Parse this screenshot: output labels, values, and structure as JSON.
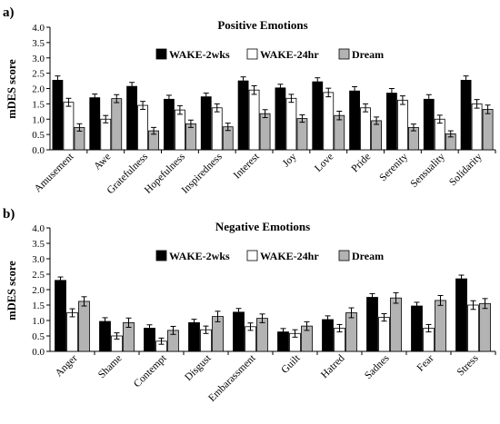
{
  "chart_data": [
    {
      "type": "bar",
      "panel_label": "a)",
      "title": "Positive Emotions",
      "xlabel": "",
      "ylabel": "mDES score",
      "ylim": [
        0,
        4
      ],
      "yticks": [
        "0.0",
        "0.5",
        "1.0",
        "1.5",
        "2.0",
        "2.5",
        "3.0",
        "3.5",
        "4.0"
      ],
      "legend_position": "top",
      "categories": [
        "Amusement",
        "Awe",
        "Gratefulness",
        "Hopefulness",
        "Inspiredness",
        "Interest",
        "Joy",
        "Love",
        "Pride",
        "Serenity",
        "Sensuality",
        "Solidarity"
      ],
      "series": [
        {
          "name": "WAKE-2wks",
          "color": "#000000",
          "values": [
            2.27,
            1.7,
            2.07,
            1.65,
            1.73,
            2.25,
            2.02,
            2.22,
            1.92,
            1.85,
            1.65,
            2.27
          ],
          "errors": [
            0.14,
            0.12,
            0.13,
            0.13,
            0.12,
            0.13,
            0.12,
            0.13,
            0.14,
            0.15,
            0.15,
            0.14
          ]
        },
        {
          "name": "WAKE-24hr",
          "color": "#ffffff",
          "values": [
            1.55,
            1.0,
            1.45,
            1.3,
            1.37,
            1.95,
            1.68,
            1.87,
            1.37,
            1.62,
            1.0,
            1.5
          ],
          "errors": [
            0.13,
            0.12,
            0.13,
            0.14,
            0.13,
            0.14,
            0.13,
            0.14,
            0.13,
            0.14,
            0.13,
            0.14
          ]
        },
        {
          "name": "Dream",
          "color": "#b3b3b3",
          "values": [
            0.73,
            1.67,
            0.62,
            0.85,
            0.75,
            1.18,
            1.02,
            1.12,
            0.95,
            0.73,
            0.52,
            1.32
          ],
          "errors": [
            0.12,
            0.13,
            0.11,
            0.12,
            0.12,
            0.13,
            0.12,
            0.14,
            0.12,
            0.11,
            0.1,
            0.14
          ]
        }
      ]
    },
    {
      "type": "bar",
      "panel_label": "b)",
      "title": "Negative Emotions",
      "xlabel": "",
      "ylabel": "mDES score",
      "ylim": [
        0,
        4
      ],
      "yticks": [
        "0.0",
        "0.5",
        "1.0",
        "1.5",
        "2.0",
        "2.5",
        "3.0",
        "3.5",
        "4.0"
      ],
      "legend_position": "top",
      "categories": [
        "Anger",
        "Shame",
        "Contempt",
        "Disgust",
        "Embarassment",
        "Guilt",
        "Hatred",
        "Sadnes",
        "Fear",
        "Stress"
      ],
      "series": [
        {
          "name": "WAKE-2wks",
          "color": "#000000",
          "values": [
            2.3,
            0.97,
            0.75,
            0.93,
            1.27,
            0.63,
            1.03,
            1.75,
            1.47,
            2.35
          ],
          "errors": [
            0.11,
            0.12,
            0.11,
            0.11,
            0.12,
            0.11,
            0.12,
            0.12,
            0.12,
            0.12
          ]
        },
        {
          "name": "WAKE-24hr",
          "color": "#ffffff",
          "values": [
            1.25,
            0.5,
            0.33,
            0.7,
            0.8,
            0.58,
            0.75,
            1.1,
            0.75,
            1.5
          ],
          "errors": [
            0.13,
            0.1,
            0.1,
            0.12,
            0.12,
            0.12,
            0.12,
            0.12,
            0.12,
            0.14
          ]
        },
        {
          "name": "Dream",
          "color": "#b3b3b3",
          "values": [
            1.62,
            0.93,
            0.68,
            1.13,
            1.07,
            0.82,
            1.25,
            1.73,
            1.65,
            1.55
          ],
          "errors": [
            0.15,
            0.15,
            0.13,
            0.17,
            0.14,
            0.14,
            0.16,
            0.17,
            0.16,
            0.16
          ]
        }
      ]
    }
  ]
}
